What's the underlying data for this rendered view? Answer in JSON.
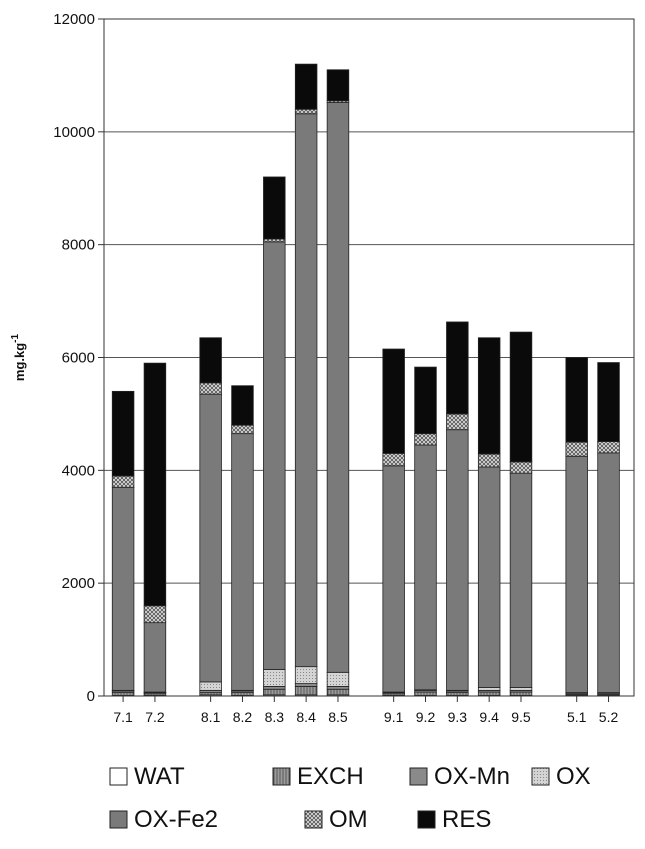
{
  "chart_data": {
    "type": "bar",
    "stacked": true,
    "ylabel": "mg.kg",
    "ylabel_sup": "-1",
    "ylim": [
      0,
      12000
    ],
    "yticks": [
      0,
      2000,
      4000,
      6000,
      8000,
      10000,
      12000
    ],
    "grid": true,
    "legend_position": "bottom",
    "groups": [
      [
        "7.1",
        "7.2"
      ],
      [
        "8.1",
        "8.2",
        "8.3",
        "8.4",
        "8.5"
      ],
      [
        "9.1",
        "9.2",
        "9.3",
        "9.4",
        "9.5"
      ],
      [
        "5.1",
        "5.2"
      ]
    ],
    "categories": [
      "7.1",
      "7.2",
      "8.1",
      "8.2",
      "8.3",
      "8.4",
      "8.5",
      "9.1",
      "9.2",
      "9.3",
      "9.4",
      "9.5",
      "5.1",
      "5.2"
    ],
    "series": [
      {
        "name": "WAT",
        "color": "#ffffff",
        "pattern": "none",
        "values": [
          10,
          10,
          20,
          10,
          20,
          20,
          20,
          10,
          10,
          10,
          10,
          10,
          10,
          10
        ]
      },
      {
        "name": "EXCH",
        "color": "#9a9a9a",
        "pattern": "vline",
        "values": [
          50,
          30,
          40,
          50,
          100,
          150,
          100,
          30,
          60,
          50,
          60,
          60,
          20,
          20
        ]
      },
      {
        "name": "OX-Mn",
        "color": "#8a8a8a",
        "pattern": "none",
        "values": [
          30,
          20,
          40,
          30,
          50,
          50,
          50,
          20,
          30,
          30,
          30,
          30,
          20,
          20
        ]
      },
      {
        "name": "OX",
        "color": "#cfcfcf",
        "pattern": "dots",
        "values": [
          10,
          10,
          150,
          10,
          300,
          300,
          250,
          10,
          10,
          10,
          50,
          50,
          10,
          10
        ]
      },
      {
        "name": "OX-Fe2",
        "color": "#7a7a7a",
        "pattern": "none",
        "values": [
          3600,
          1230,
          5100,
          4550,
          7580,
          9800,
          10100,
          4010,
          4340,
          4620,
          3910,
          3800,
          4190,
          4250
        ]
      },
      {
        "name": "OM",
        "color": "#dddddd",
        "pattern": "cross",
        "values": [
          200,
          300,
          200,
          150,
          50,
          80,
          30,
          220,
          200,
          280,
          230,
          200,
          250,
          200
        ]
      },
      {
        "name": "RES",
        "color": "#0a0a0a",
        "pattern": "none",
        "values": [
          1500,
          4300,
          800,
          700,
          1100,
          800,
          550,
          1850,
          1180,
          1630,
          2060,
          2300,
          1500,
          1400
        ]
      }
    ]
  }
}
